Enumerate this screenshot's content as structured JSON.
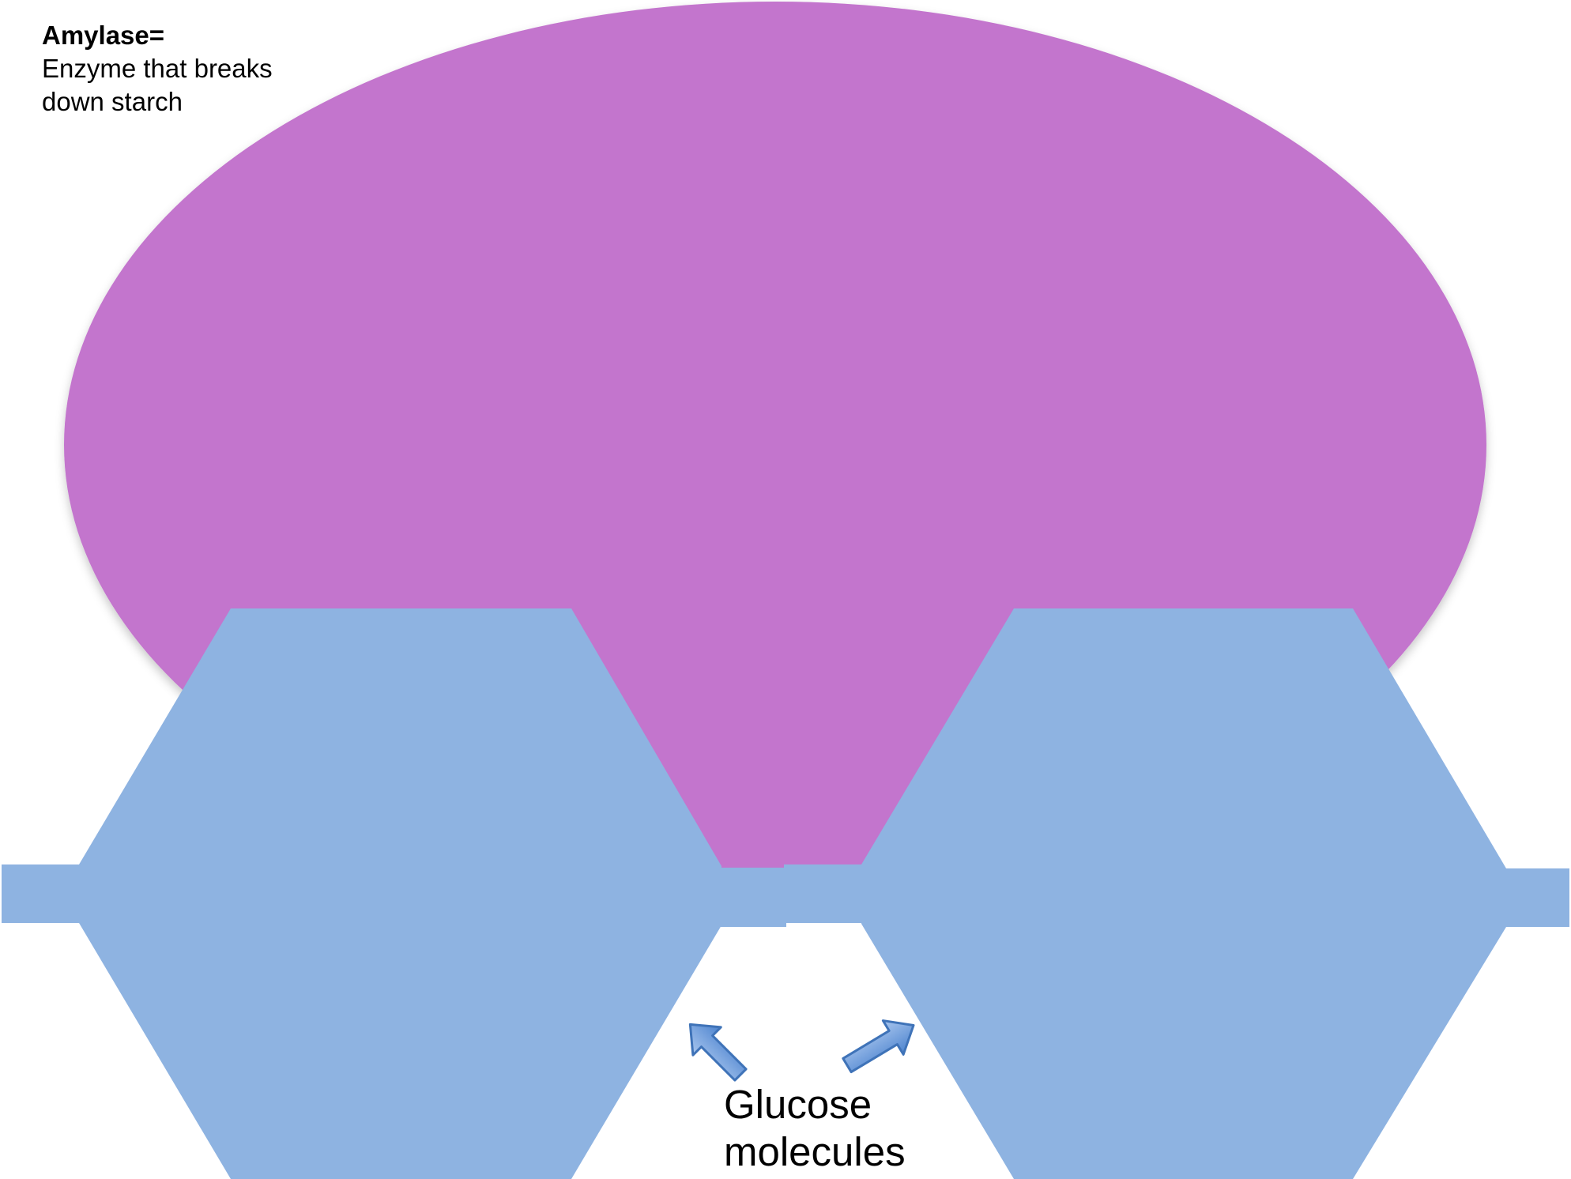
{
  "caption": {
    "title": "Amylase=",
    "line1": "Enzyme that breaks",
    "line2": "down starch"
  },
  "label": {
    "line1": "Glucose",
    "line2": "molecules"
  },
  "colors": {
    "enzyme": "#c375cd",
    "glucose": "#8eb3e1",
    "arrow_fill": "#6f9fdc",
    "arrow_stroke": "#3f73b8",
    "background": "#ffffff",
    "text": "#000000"
  }
}
